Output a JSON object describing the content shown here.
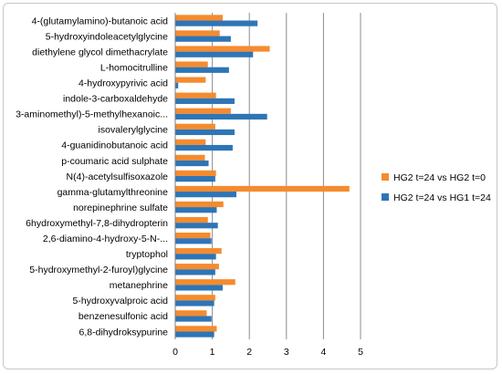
{
  "chart_data": {
    "type": "bar",
    "orientation": "horizontal",
    "categories": [
      "4-(glutamylamino)-butanoic acid",
      "5-hydroxyindoleacetylglycine",
      "diethylene glycol dimethacrylate",
      "L-homocitrulline",
      "4-hydroxypyrivic acid",
      "indole-3-carboxaldehyde",
      "3-aminomethyl)-5-methylhexanoic...",
      "isovalerylglycine",
      "4-guanidinobutanoic acid",
      "p-coumaric acid sulphate",
      "N(4)-acetylsulfisoxazole",
      "gamma-glutamylthreonine",
      "norepinephrine sulfate",
      "6hydroxymethyl-7,8-dihydropterin",
      "2,6-diamino-4-hydroxy-5-N-...",
      "tryptophol",
      "5-hydroxymethyl-2-furoyl)glycine",
      "metanephrine",
      "5-hydroxyvalproic acid",
      "benzenesulfonic acid",
      "6,8-dihydroksypurine"
    ],
    "series": [
      {
        "name": "HG2 t=24 vs HG2 t=0",
        "color": "#f58b2e",
        "values": [
          1.28,
          1.2,
          2.55,
          0.88,
          0.82,
          1.1,
          1.5,
          1.08,
          0.82,
          0.8,
          1.1,
          4.7,
          1.3,
          0.88,
          0.95,
          1.25,
          1.18,
          1.62,
          1.08,
          0.85,
          1.12
        ]
      },
      {
        "name": "HG2 t=24 vs HG1 t=24",
        "color": "#2e75b6",
        "values": [
          2.22,
          1.5,
          2.1,
          1.45,
          0.08,
          1.6,
          2.48,
          1.6,
          1.55,
          0.9,
          1.08,
          1.65,
          1.12,
          1.15,
          0.98,
          1.1,
          1.08,
          1.28,
          1.05,
          0.98,
          1.05
        ]
      }
    ],
    "xlim": [
      0,
      5
    ],
    "xticks": [
      "0",
      "1",
      "2",
      "3",
      "4",
      "5"
    ],
    "grid": true,
    "legend": "right"
  }
}
